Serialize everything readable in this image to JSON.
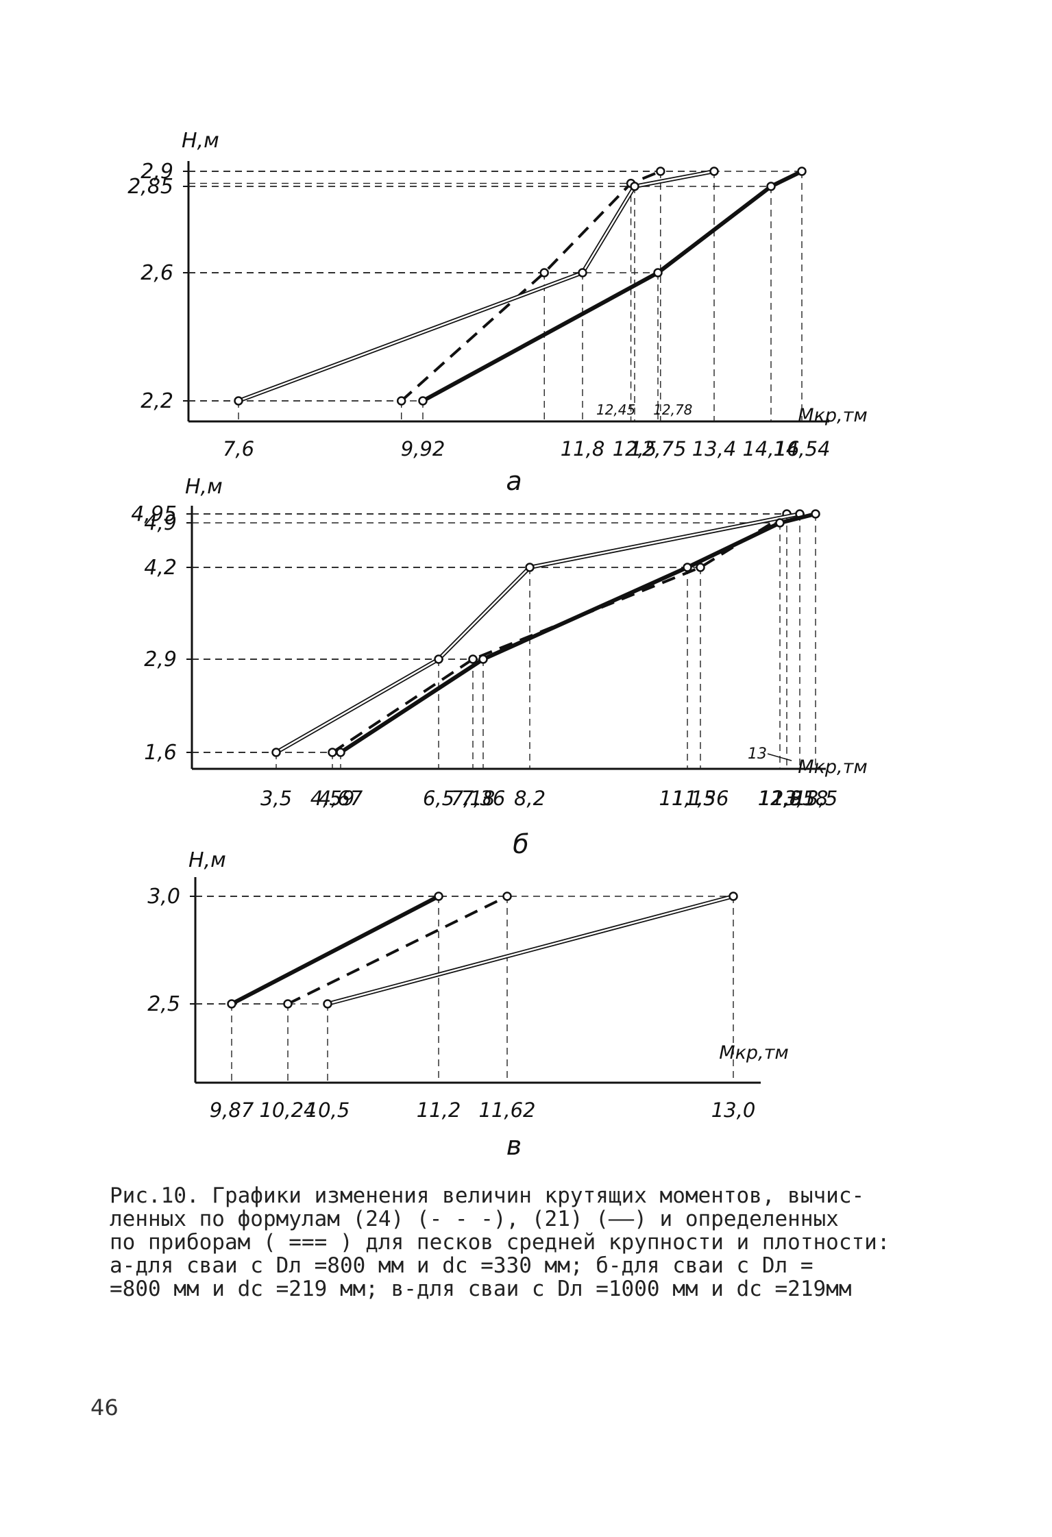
{
  "chart_data": [
    {
      "id": "a",
      "type": "line",
      "panel_label": "а",
      "ylabel": "Н,м",
      "xlabel": "Мкр,тм",
      "ylim": [
        2.2,
        2.9
      ],
      "y_ticks": [
        {
          "value": 2.9,
          "label": "2,9"
        },
        {
          "value": 2.85,
          "label": "2,85"
        },
        {
          "value": 2.6,
          "label": "2,6"
        },
        {
          "value": 2.2,
          "label": "2,2"
        }
      ],
      "x_ticks": [
        {
          "value": 7.6,
          "label": "7,6"
        },
        {
          "value": 9.92,
          "label": "9,92"
        },
        {
          "value": 11.8,
          "label": "11,8"
        },
        {
          "value": 12.5,
          "label": "12,5"
        },
        {
          "value": 12.75,
          "label": "12,75"
        },
        {
          "value": 13.4,
          "label": "13,4"
        },
        {
          "value": 14.16,
          "label": "14,16"
        },
        {
          "value": 14.54,
          "label": "14,54"
        }
      ],
      "annotations": [
        {
          "text": "12,45",
          "x": 12.45
        },
        {
          "text": "12,78",
          "x": 12.78
        }
      ],
      "series": [
        {
          "style": "dashed",
          "points": [
            [
              9.65,
              2.2
            ],
            [
              11.35,
              2.6
            ],
            [
              12.45,
              2.86
            ],
            [
              12.78,
              2.9
            ]
          ]
        },
        {
          "style": "double",
          "points": [
            [
              7.6,
              2.2
            ],
            [
              11.8,
              2.6
            ],
            [
              12.5,
              2.85
            ],
            [
              13.4,
              2.9
            ]
          ]
        },
        {
          "style": "thick",
          "points": [
            [
              9.92,
              2.2
            ],
            [
              12.75,
              2.6
            ],
            [
              14.16,
              2.85
            ],
            [
              14.54,
              2.9
            ]
          ]
        }
      ]
    },
    {
      "id": "b",
      "type": "line",
      "panel_label": "б",
      "ylabel": "Н,м",
      "xlabel": "Мкр,тм",
      "ylim": [
        1.6,
        4.95
      ],
      "y_ticks": [
        {
          "value": 4.95,
          "label": "4,95"
        },
        {
          "value": 4.9,
          "label": "4,9"
        },
        {
          "value": 4.2,
          "label": "4,2"
        },
        {
          "value": 2.9,
          "label": "2,9"
        },
        {
          "value": 1.6,
          "label": "1,6"
        }
      ],
      "x_ticks": [
        {
          "value": 3.5,
          "label": "3,5"
        },
        {
          "value": 4.59,
          "label": "4,59"
        },
        {
          "value": 4.67,
          "label": "4,67"
        },
        {
          "value": 6.5,
          "label": "6,5"
        },
        {
          "value": 7.18,
          "label": "7,18"
        },
        {
          "value": 7.36,
          "label": "7,36"
        },
        {
          "value": 8.2,
          "label": "8,2"
        },
        {
          "value": 11.15,
          "label": "11,15"
        },
        {
          "value": 11.36,
          "label": "11,36"
        },
        {
          "value": 12.8,
          "label": "12,8"
        },
        {
          "value": 12.95,
          "label": "12,95"
        },
        {
          "value": 13.18,
          "label": "13,18"
        },
        {
          "value": 13.5,
          "label": "13,5"
        }
      ],
      "annotations": [
        {
          "text": "13",
          "x": 13.0
        }
      ],
      "series": [
        {
          "style": "dashed",
          "points": [
            [
              4.59,
              1.6
            ],
            [
              7.18,
              2.9
            ],
            [
              11.36,
              4.2
            ],
            [
              12.95,
              4.95
            ]
          ]
        },
        {
          "style": "double",
          "points": [
            [
              3.5,
              1.6
            ],
            [
              6.5,
              2.9
            ],
            [
              8.2,
              4.2
            ],
            [
              13.18,
              4.95
            ]
          ]
        },
        {
          "style": "thick",
          "points": [
            [
              4.67,
              1.6
            ],
            [
              7.36,
              2.9
            ],
            [
              11.15,
              4.2
            ],
            [
              12.8,
              4.9
            ],
            [
              13.5,
              4.95
            ]
          ]
        }
      ]
    },
    {
      "id": "v",
      "type": "line",
      "panel_label": "в",
      "ylabel": "Н,м",
      "xlabel": "Мкр,тм",
      "ylim": [
        2.5,
        3.0
      ],
      "y_ticks": [
        {
          "value": 3.0,
          "label": "3,0"
        },
        {
          "value": 2.5,
          "label": "2,5"
        }
      ],
      "x_ticks": [
        {
          "value": 9.87,
          "label": "9,87"
        },
        {
          "value": 10.24,
          "label": "10,24"
        },
        {
          "value": 10.5,
          "label": "10,5"
        },
        {
          "value": 11.2,
          "label": "11,2"
        },
        {
          "value": 11.62,
          "label": "11,62"
        },
        {
          "value": 13.0,
          "label": "13,0"
        }
      ],
      "annotations": [],
      "series": [
        {
          "style": "thick",
          "points": [
            [
              9.87,
              2.5
            ],
            [
              11.2,
              3.0
            ]
          ]
        },
        {
          "style": "dashed",
          "points": [
            [
              10.24,
              2.5
            ],
            [
              11.62,
              3.0
            ]
          ]
        },
        {
          "style": "double",
          "points": [
            [
              10.5,
              2.5
            ],
            [
              13.0,
              3.0
            ]
          ]
        }
      ]
    }
  ],
  "caption": {
    "lines": [
      "Рис.10. Графики изменения величин крутящих моментов, вычис-",
      "ленных по формулам (24) (- - -), (21) (——) и определенных",
      "по приборам ( === ) для песков средней крупности и плотности:",
      "а-для сваи с Dл =800 мм и dс =330 мм; б-для сваи с Dл =",
      "=800 мм и dс =219 мм; в-для сваи с Dл =1000 мм и dс =219мм"
    ]
  },
  "page_number": "46"
}
